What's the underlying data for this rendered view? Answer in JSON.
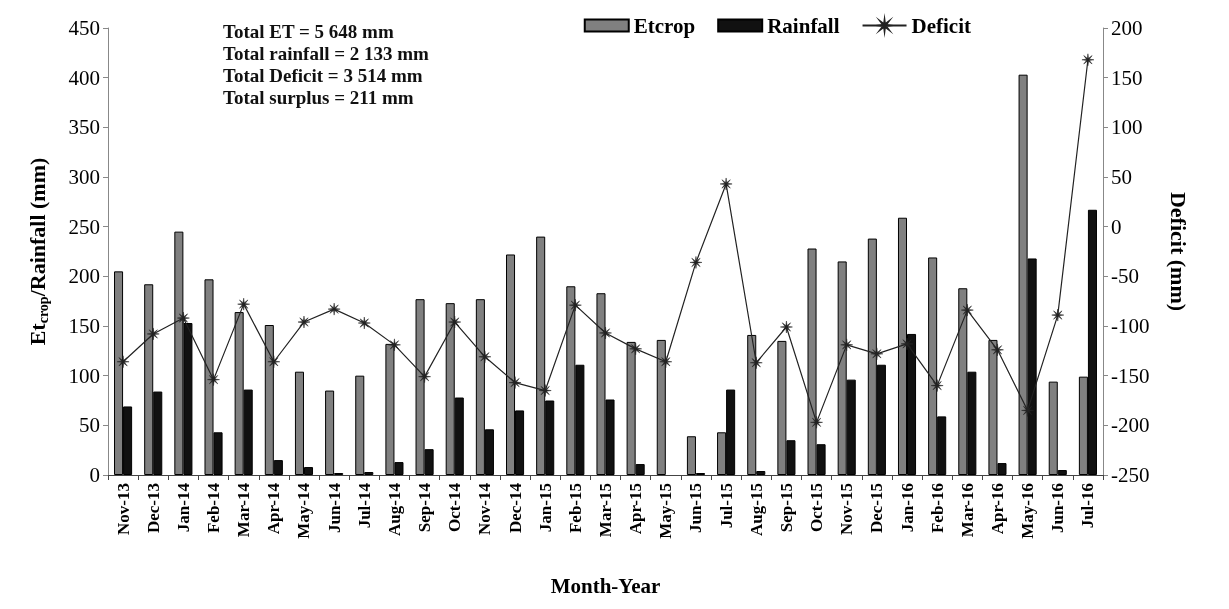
{
  "chart_data": {
    "type": "bar",
    "xlabel": "Month-Year",
    "ylabel": "Et$_{crop}$/Rainfall (mm)",
    "y2label": "Deficit (mm)",
    "categories": [
      "Nov-13",
      "Dec-13",
      "Jan-14",
      "Feb-14",
      "Mar-14",
      "Apr-14",
      "May-14",
      "Jun-14",
      "Jul-14",
      "Aug-14",
      "Sep-14",
      "Oct-14",
      "Nov-14",
      "Dec-14",
      "Jan-15",
      "Feb-15",
      "Mar-15",
      "Apr-15",
      "May-15",
      "Jun-15",
      "Jul-15",
      "Aug-15",
      "Sep-15",
      "Oct-15",
      "Nov-15",
      "Dec-15",
      "Jan-16",
      "Feb-16",
      "Mar-16",
      "Apr-16",
      "May-16",
      "Jun-16",
      "Jul-16"
    ],
    "series": [
      {
        "name": "Etcrop",
        "color": "#808080",
        "values": [
          205,
          192,
          245,
          197,
          164,
          151,
          104,
          85,
          100,
          132,
          177,
          173,
          177,
          222,
          240,
          190,
          183,
          134,
          136,
          39,
          43,
          141,
          135,
          228,
          215,
          238,
          259,
          219,
          188,
          136,
          403,
          94,
          99
        ]
      },
      {
        "name": "Rainfall",
        "color": "#111111",
        "values": [
          69,
          84,
          153,
          43,
          86,
          15,
          8,
          2,
          3,
          13,
          26,
          78,
          46,
          65,
          75,
          111,
          76,
          11,
          0,
          2,
          86,
          4,
          35,
          31,
          96,
          111,
          142,
          59,
          104,
          12,
          218,
          5,
          267
        ]
      },
      {
        "name": "Deficit",
        "type": "line",
        "axis": "y2",
        "color": "#222222",
        "values": [
          -136,
          -108,
          -92,
          -154,
          -78,
          -136,
          -96,
          -83,
          -97,
          -119,
          -151,
          -96,
          -131,
          -157,
          -165,
          -79,
          -107,
          -123,
          -136,
          -36,
          43,
          -137,
          -101,
          -197,
          -119,
          -128,
          -118,
          -160,
          -84,
          -124,
          -185,
          -89,
          168
        ]
      }
    ],
    "ylim": [
      0,
      450
    ],
    "yticks": [
      0,
      50,
      100,
      150,
      200,
      250,
      300,
      350,
      400,
      450
    ],
    "y2lim": [
      -250,
      200
    ],
    "y2ticks": [
      -250,
      -200,
      -150,
      -100,
      -50,
      0,
      50,
      100,
      150,
      200
    ],
    "annotations": [
      "Total ET = 5 648 mm",
      "Total rainfall = 2 133 mm",
      "Total Deficit = 3 514 mm",
      "Total surplus = 211 mm"
    ],
    "grid": false,
    "legend": "top right",
    "marker": "star",
    "line_style": "solid"
  }
}
